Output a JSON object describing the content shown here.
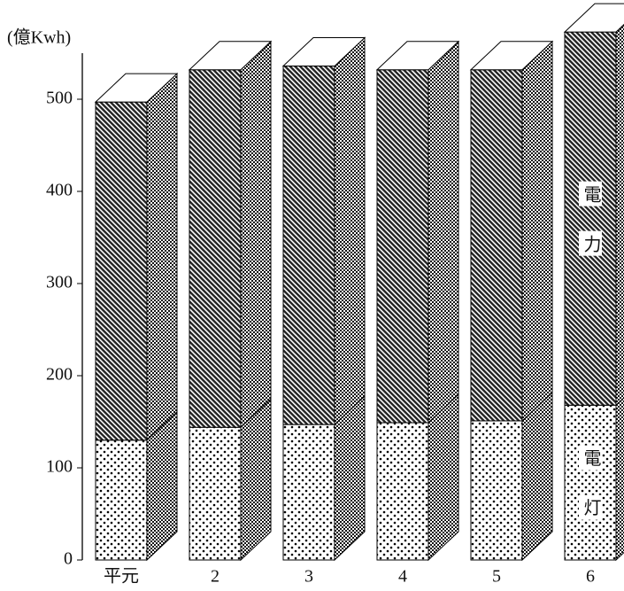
{
  "chart_data": {
    "type": "stacked-bar-3d",
    "y_label": "(億Kwh)",
    "categories": [
      "平元",
      "2",
      "3",
      "4",
      "5",
      "6"
    ],
    "series": [
      {
        "name": "電灯",
        "values": [
          130,
          144,
          147,
          149,
          151,
          168
        ]
      },
      {
        "name": "電力",
        "values": [
          367,
          388,
          389,
          383,
          381,
          405
        ]
      }
    ],
    "ylim": [
      0,
      550
    ],
    "yticks": [
      0,
      100,
      200,
      300,
      400,
      500
    ]
  }
}
